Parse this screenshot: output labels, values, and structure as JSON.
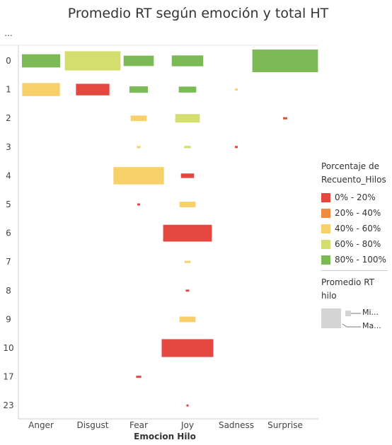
{
  "chart_data": {
    "type": "heatmap",
    "title": "Promedio RT según emoción y total HT",
    "xlabel": "Emocion Hilo",
    "ylabel": "",
    "y_header": "...",
    "categories": [
      "Anger",
      "Disgust",
      "Fear",
      "Joy",
      "Sadness",
      "Surprise"
    ],
    "rows": [
      "0",
      "1",
      "2",
      "3",
      "4",
      "5",
      "6",
      "7",
      "8",
      "9",
      "10",
      "17",
      "23"
    ],
    "cells": [
      {
        "emotion": "Anger",
        "ht": "0",
        "promedio_rt": 0.34,
        "porcentaje_bin": "80% - 100%"
      },
      {
        "emotion": "Anger",
        "ht": "1",
        "promedio_rt": 0.33,
        "porcentaje_bin": "40% - 60%"
      },
      {
        "emotion": "Disgust",
        "ht": "0",
        "promedio_rt": 0.72,
        "porcentaje_bin": "60% - 80%"
      },
      {
        "emotion": "Disgust",
        "ht": "1",
        "promedio_rt": 0.26,
        "porcentaje_bin": "0% - 20%"
      },
      {
        "emotion": "Fear",
        "ht": "0",
        "promedio_rt": 0.21,
        "porcentaje_bin": "80% - 100%"
      },
      {
        "emotion": "Fear",
        "ht": "1",
        "promedio_rt": 0.08,
        "porcentaje_bin": "80% - 100%"
      },
      {
        "emotion": "Fear",
        "ht": "2",
        "promedio_rt": 0.06,
        "porcentaje_bin": "40% - 60%"
      },
      {
        "emotion": "Fear",
        "ht": "3",
        "promedio_rt": 0.003,
        "porcentaje_bin": "40% - 60%"
      },
      {
        "emotion": "Fear",
        "ht": "4",
        "promedio_rt": 0.59,
        "porcentaje_bin": "40% - 60%"
      },
      {
        "emotion": "Fear",
        "ht": "5",
        "promedio_rt": 0.002,
        "porcentaje_bin": "0% - 20%"
      },
      {
        "emotion": "Fear",
        "ht": "17",
        "promedio_rt": 0.006,
        "porcentaje_bin": "0% - 20%"
      },
      {
        "emotion": "Joy",
        "ht": "0",
        "promedio_rt": 0.23,
        "porcentaje_bin": "80% - 100%"
      },
      {
        "emotion": "Joy",
        "ht": "1",
        "promedio_rt": 0.07,
        "porcentaje_bin": "80% - 100%"
      },
      {
        "emotion": "Joy",
        "ht": "2",
        "promedio_rt": 0.14,
        "porcentaje_bin": "60% - 80%"
      },
      {
        "emotion": "Joy",
        "ht": "3",
        "promedio_rt": 0.01,
        "porcentaje_bin": "60% - 80%"
      },
      {
        "emotion": "Joy",
        "ht": "4",
        "promedio_rt": 0.04,
        "porcentaje_bin": "0% - 20%"
      },
      {
        "emotion": "Joy",
        "ht": "5",
        "promedio_rt": 0.06,
        "porcentaje_bin": "40% - 60%"
      },
      {
        "emotion": "Joy",
        "ht": "6",
        "promedio_rt": 0.55,
        "porcentaje_bin": "0% - 20%"
      },
      {
        "emotion": "Joy",
        "ht": "7",
        "promedio_rt": 0.008,
        "porcentaje_bin": "40% - 60%"
      },
      {
        "emotion": "Joy",
        "ht": "8",
        "promedio_rt": 0.003,
        "porcentaje_bin": "0% - 20%"
      },
      {
        "emotion": "Joy",
        "ht": "9",
        "promedio_rt": 0.06,
        "porcentaje_bin": "40% - 60%"
      },
      {
        "emotion": "Joy",
        "ht": "10",
        "promedio_rt": 0.62,
        "porcentaje_bin": "0% - 20%"
      },
      {
        "emotion": "Joy",
        "ht": "23",
        "promedio_rt": 0.001,
        "porcentaje_bin": "0% - 20%"
      },
      {
        "emotion": "Sadness",
        "ht": "1",
        "promedio_rt": 0.002,
        "porcentaje_bin": "40% - 60%"
      },
      {
        "emotion": "Sadness",
        "ht": "3",
        "promedio_rt": 0.002,
        "porcentaje_bin": "0% - 20%"
      },
      {
        "emotion": "Surprise",
        "ht": "0",
        "promedio_rt": 1.0,
        "porcentaje_bin": "80% - 100%"
      },
      {
        "emotion": "Surprise",
        "ht": "2",
        "promedio_rt": 0.004,
        "porcentaje_bin": "0% - 20%"
      }
    ],
    "legend": {
      "color_title": "Porcentaje de Recuento_Hilos",
      "bins": [
        {
          "label": "0% - 20%",
          "color": "#e4473f"
        },
        {
          "label": "20% - 40%",
          "color": "#f08a3e"
        },
        {
          "label": "40% - 60%",
          "color": "#f8d06a"
        },
        {
          "label": "60% - 80%",
          "color": "#d4de6e"
        },
        {
          "label": "80% - 100%",
          "color": "#7cba55"
        }
      ],
      "size_title": "Promedio RT hilo",
      "size_min_label": "Mi...",
      "size_max_label": "Ma...",
      "size_box_color": "#d4d4d4"
    },
    "grid": false,
    "legend_placement": "right"
  }
}
